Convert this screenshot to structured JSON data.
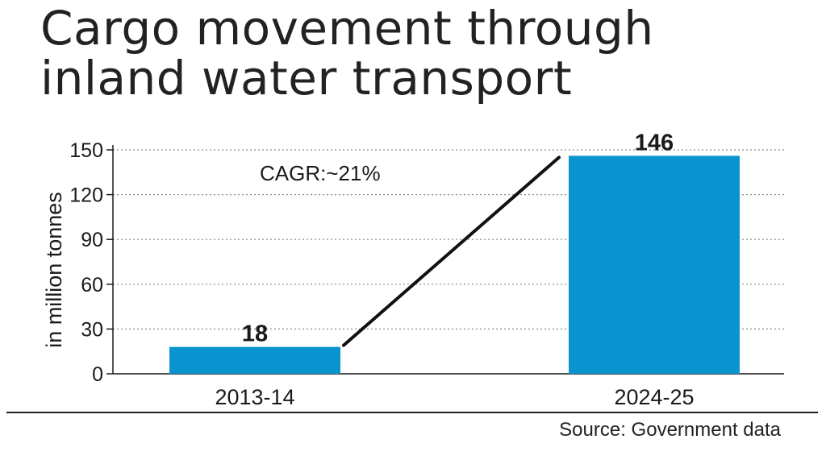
{
  "title_lines": [
    "Cargo movement through",
    "inland water transport"
  ],
  "source": "Source: Government data",
  "colors": {
    "bar": "#0994cf",
    "text": "#1a1a1a",
    "grid": "#8a8a8a",
    "trend": "#111111"
  },
  "chart_data": {
    "type": "bar",
    "categories": [
      "2013-14",
      "2024-25"
    ],
    "values": [
      18,
      146
    ],
    "data_labels": [
      "18",
      "146"
    ],
    "ylabel": "in million tonnes",
    "ylim": [
      0,
      150
    ],
    "yticks": [
      0,
      30,
      60,
      90,
      120,
      150
    ],
    "grid": true,
    "annotation": "CAGR:~21%"
  }
}
